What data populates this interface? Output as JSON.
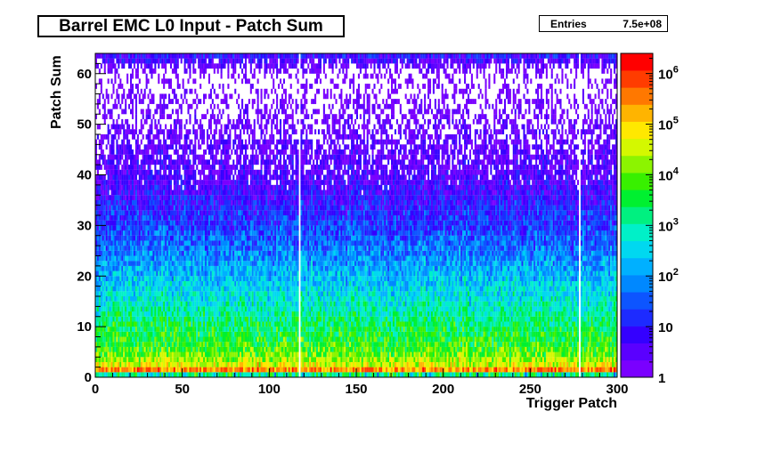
{
  "chart_data": {
    "type": "heatmap",
    "title": "Barrel EMC L0 Input - Patch Sum",
    "xlabel": "Trigger Patch",
    "ylabel": "Patch Sum",
    "xlim": [
      0,
      300
    ],
    "ylim": [
      0,
      64
    ],
    "x_ticks": [
      "0",
      "50",
      "100",
      "150",
      "200",
      "250",
      "300"
    ],
    "y_ticks": [
      "0",
      "10",
      "20",
      "30",
      "40",
      "50",
      "60"
    ],
    "z_scale": "log",
    "zlim": [
      1,
      2500000
    ],
    "z_ticks": [
      {
        "value": 1,
        "label": "1"
      },
      {
        "value": 10,
        "label": "10"
      },
      {
        "value": 100,
        "label": "10",
        "exp": "2"
      },
      {
        "value": 1000,
        "label": "10",
        "exp": "3"
      },
      {
        "value": 10000,
        "label": "10",
        "exp": "4"
      },
      {
        "value": 100000,
        "label": "10",
        "exp": "5"
      },
      {
        "value": 1000000,
        "label": "10",
        "exp": "6"
      }
    ],
    "profile": [
      {
        "patch_sum": 1,
        "counts": 1500000
      },
      {
        "patch_sum": 2,
        "counts": 60000
      },
      {
        "patch_sum": 5,
        "counts": 8000
      },
      {
        "patch_sum": 10,
        "counts": 2500
      },
      {
        "patch_sum": 15,
        "counts": 600
      },
      {
        "patch_sum": 20,
        "counts": 200
      },
      {
        "patch_sum": 25,
        "counts": 60
      },
      {
        "patch_sum": 30,
        "counts": 20
      },
      {
        "patch_sum": 35,
        "counts": 8
      },
      {
        "patch_sum": 40,
        "counts": 3
      },
      {
        "patch_sum": 50,
        "counts": 1.2
      },
      {
        "patch_sum": 60,
        "counts": 0.5
      },
      {
        "patch_sum": 63,
        "counts": 5
      }
    ],
    "empty_patches": [
      117,
      278
    ],
    "palette": [
      "#7a00ff",
      "#5a00ff",
      "#3400ff",
      "#1d2bff",
      "#0d55ff",
      "#0088ff",
      "#00b0ff",
      "#00d8f0",
      "#00f0c8",
      "#00f080",
      "#00f030",
      "#38f000",
      "#8cf400",
      "#d4f800",
      "#ffe800",
      "#ffb400",
      "#ff7800",
      "#ff3c00",
      "#ff0000"
    ]
  },
  "stats": {
    "entries_label": "Entries",
    "entries_value": "7.5e+08"
  }
}
